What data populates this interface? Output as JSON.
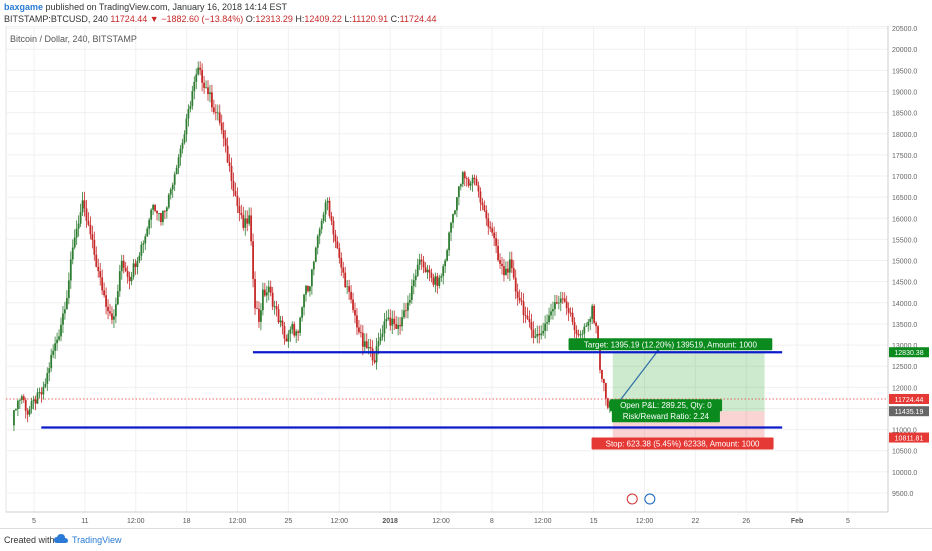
{
  "header": {
    "author": "baxgame",
    "published": "published on TradingView.com, January 16, 2018 14:14 EST",
    "symbol": "BITSTAMP:BTCUSD, 240",
    "last": "11724.44",
    "change_arrow": "▼",
    "change": "−1882.60 (−13.84%)",
    "o_label": "O:",
    "o_value": "12313.29",
    "h_label": "H:",
    "h_value": "12409.22",
    "l_label": "L:",
    "l_value": "11120.91",
    "c_label": "C:",
    "c_value": "11724.44"
  },
  "chart_data": {
    "type": "candlestick",
    "title": "Bitcoin / Dollar, 240, BITSTAMP",
    "y_ticks": [
      9500,
      10000,
      10500,
      11000,
      11500,
      12000,
      12500,
      13000,
      13500,
      14000,
      14500,
      15000,
      15500,
      16000,
      16500,
      17000,
      17500,
      18000,
      18500,
      19000,
      19500,
      20000,
      20500
    ],
    "ylim": [
      9050,
      20550
    ],
    "x_ticks": [
      "5",
      "11",
      "12:00",
      "18",
      "12:00",
      "25",
      "12:00",
      "2018",
      "12:00",
      "8",
      "12:00",
      "15",
      "12:00",
      "22",
      "26",
      "Feb",
      "5"
    ],
    "price_path": [
      [
        0,
        11100
      ],
      [
        2,
        11600
      ],
      [
        5,
        11800
      ],
      [
        8,
        11400
      ],
      [
        12,
        11700
      ],
      [
        16,
        11900
      ],
      [
        20,
        12700
      ],
      [
        24,
        13300
      ],
      [
        28,
        14200
      ],
      [
        32,
        15600
      ],
      [
        36,
        16300
      ],
      [
        40,
        15600
      ],
      [
        44,
        14700
      ],
      [
        48,
        14000
      ],
      [
        52,
        13600
      ],
      [
        56,
        15000
      ],
      [
        60,
        14600
      ],
      [
        64,
        15100
      ],
      [
        68,
        15600
      ],
      [
        72,
        16400
      ],
      [
        76,
        16000
      ],
      [
        80,
        16500
      ],
      [
        84,
        17300
      ],
      [
        88,
        18000
      ],
      [
        92,
        19000
      ],
      [
        95,
        19500
      ],
      [
        97,
        19300
      ],
      [
        100,
        19000
      ],
      [
        103,
        18600
      ],
      [
        106,
        18300
      ],
      [
        109,
        17600
      ],
      [
        112,
        17000
      ],
      [
        115,
        16300
      ],
      [
        118,
        15800
      ],
      [
        121,
        16000
      ],
      [
        124,
        14000
      ],
      [
        126,
        13600
      ],
      [
        128,
        14200
      ],
      [
        131,
        14300
      ],
      [
        134,
        13900
      ],
      [
        137,
        13500
      ],
      [
        140,
        13100
      ],
      [
        143,
        13400
      ],
      [
        146,
        13200
      ],
      [
        149,
        14200
      ],
      [
        152,
        14500
      ],
      [
        155,
        15200
      ],
      [
        158,
        16000
      ],
      [
        161,
        16400
      ],
      [
        164,
        15700
      ],
      [
        167,
        15000
      ],
      [
        170,
        14500
      ],
      [
        173,
        14000
      ],
      [
        176,
        13500
      ],
      [
        179,
        13000
      ],
      [
        182,
        12900
      ],
      [
        185,
        12700
      ],
      [
        188,
        13200
      ],
      [
        191,
        13700
      ],
      [
        194,
        13500
      ],
      [
        197,
        13400
      ],
      [
        200,
        13800
      ],
      [
        203,
        14100
      ],
      [
        206,
        14700
      ],
      [
        209,
        15000
      ],
      [
        212,
        14700
      ],
      [
        215,
        14500
      ],
      [
        218,
        14500
      ],
      [
        221,
        15000
      ],
      [
        224,
        15900
      ],
      [
        227,
        16500
      ],
      [
        230,
        17000
      ],
      [
        233,
        16800
      ],
      [
        236,
        17000
      ],
      [
        239,
        16400
      ],
      [
        242,
        16000
      ],
      [
        245,
        15700
      ],
      [
        248,
        15000
      ],
      [
        251,
        14700
      ],
      [
        254,
        14900
      ],
      [
        257,
        14300
      ],
      [
        260,
        14000
      ],
      [
        263,
        13500
      ],
      [
        266,
        13300
      ],
      [
        269,
        13200
      ],
      [
        272,
        13500
      ],
      [
        275,
        13800
      ],
      [
        278,
        14000
      ],
      [
        281,
        14200
      ],
      [
        284,
        13800
      ],
      [
        287,
        13400
      ],
      [
        290,
        13200
      ],
      [
        293,
        13400
      ],
      [
        296,
        13800
      ],
      [
        298,
        13500
      ],
      [
        300,
        12500
      ],
      [
        302,
        12000
      ],
      [
        304,
        11500
      ],
      [
        306,
        11724
      ]
    ],
    "candle_range": [
      0,
      306
    ],
    "trend_lines": [
      {
        "name": "support",
        "value": 11050,
        "from": 0.04,
        "to": 0.88
      },
      {
        "name": "resistance",
        "value": 12830,
        "from": 0.28,
        "to": 0.88
      }
    ],
    "position": {
      "entry": 11435,
      "target": 12830,
      "stop": 10812,
      "target_label": "Target: 1395.19 (12.20%) 139519, Amount: 1000",
      "pnl_label": "Open P&L: 289.25, Qty: 0",
      "rr_label": "Risk/Reward Ratio: 2.24",
      "stop_label": "Stop: 623.38 (5.45%) 62338, Amount: 1000"
    },
    "price_labels": [
      {
        "value": "12830.38",
        "color": "#0b8a1e"
      },
      {
        "value": "11724.44",
        "color": "#e53935"
      },
      {
        "value": "11435.19",
        "color": "#666666"
      },
      {
        "value": "10811.81",
        "color": "#e53935"
      }
    ],
    "colors": {
      "up": "#2e7d32",
      "down": "#c62828",
      "line": "#0b1bcc",
      "target": "#0b8a1e",
      "stop": "#e53935"
    }
  },
  "footer": {
    "created": "Created with",
    "brand": "TradingView"
  }
}
